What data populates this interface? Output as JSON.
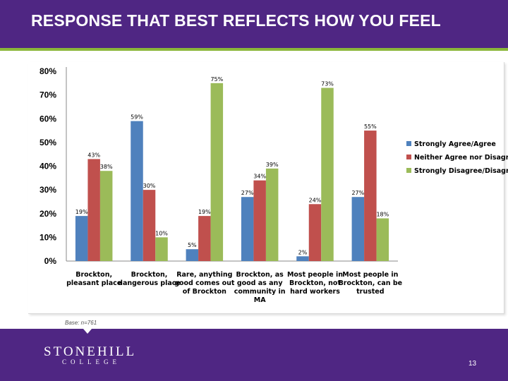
{
  "slide": {
    "title": "RESPONSE THAT BEST REFLECTS HOW YOU FEEL",
    "base_note": "Base: n=761",
    "page_number": "13",
    "logo": {
      "name": "STONEHILL",
      "sub": "COLLEGE"
    },
    "colors": {
      "header": "#4f2683",
      "accent_line": "#8bb73b",
      "footer": "#4f2683"
    }
  },
  "chart_data": {
    "type": "bar",
    "title": "",
    "xlabel": "",
    "ylabel": "",
    "ylim": [
      0,
      80
    ],
    "y_ticks": [
      "0%",
      "10%",
      "20%",
      "30%",
      "40%",
      "50%",
      "60%",
      "70%",
      "80%"
    ],
    "grid": false,
    "legend_position": "right",
    "categories": [
      [
        "Brockton,",
        "pleasant place"
      ],
      [
        "Brockton,",
        "dangerous place"
      ],
      [
        "Rare, anything",
        "good comes out",
        "of Brockton"
      ],
      [
        "Brockton, as",
        "good as any",
        "community in",
        "MA"
      ],
      [
        "Most people in",
        "Brockton, not",
        "hard workers"
      ],
      [
        "Most people in",
        "Brockton, can be",
        "trusted"
      ]
    ],
    "series": [
      {
        "name": "Strongly Agree/Agree",
        "color": "#4f81bd",
        "values": [
          19,
          59,
          5,
          27,
          2,
          27
        ],
        "labels": [
          "19%",
          "59%",
          "5%",
          "27%",
          "2%",
          "27%"
        ]
      },
      {
        "name": "Neither Agree nor Disagree",
        "color": "#c0504d",
        "values": [
          43,
          30,
          19,
          34,
          24,
          55
        ],
        "labels": [
          "43%",
          "30%",
          "19%",
          "34%",
          "24%",
          "55%"
        ]
      },
      {
        "name": "Strongly Disagree/Disagree",
        "color": "#9bbb59",
        "values": [
          38,
          10,
          75,
          39,
          73,
          18
        ],
        "labels": [
          "38%",
          "10%",
          "75%",
          "39%",
          "73%",
          "18%"
        ]
      }
    ]
  }
}
